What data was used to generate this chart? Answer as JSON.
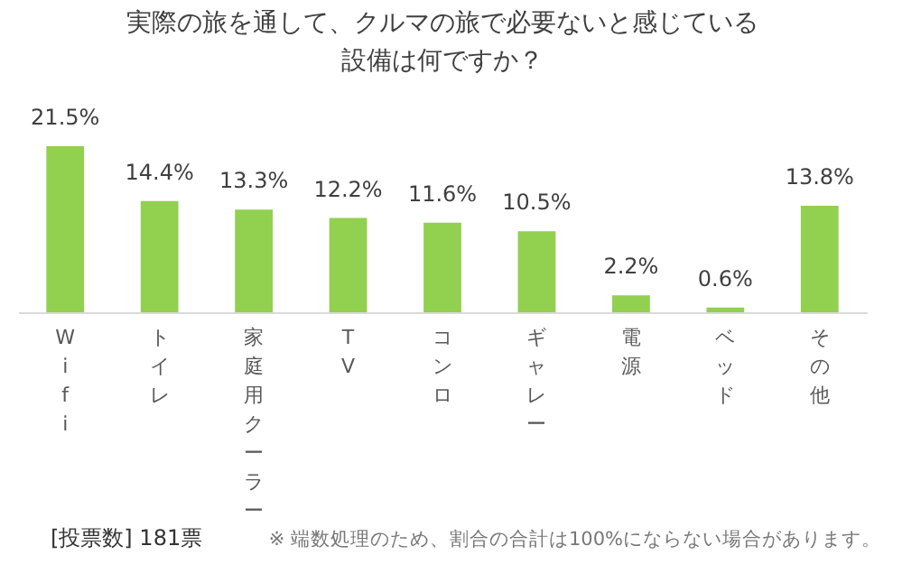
{
  "chart_data": {
    "type": "bar",
    "title": "実際の旅を通して、クルマの旅で必要ないと感じている設備は何ですか？",
    "categories": [
      "Wifi",
      "トイレ",
      "家庭用クーラー",
      "TV",
      "コンロ",
      "ギャレー",
      "電源",
      "ベッド",
      "その他"
    ],
    "values": [
      21.5,
      14.4,
      13.3,
      12.2,
      11.6,
      10.5,
      2.2,
      0.6,
      13.8
    ],
    "value_labels": [
      "21.5%",
      "14.4%",
      "13.3%",
      "12.2%",
      "11.6%",
      "10.5%",
      "2.2%",
      "0.6%",
      "13.8%"
    ],
    "color": "#92d050",
    "annotations": [
      "[投票数]  181票",
      "※ 端数処理のため、割合の合計は100%にならない場合があります。"
    ]
  }
}
